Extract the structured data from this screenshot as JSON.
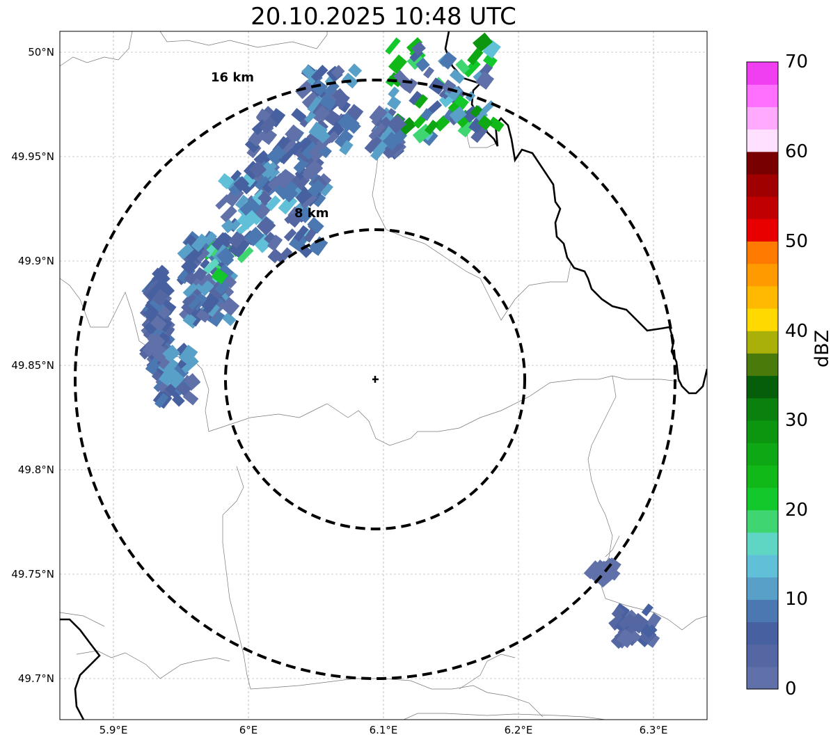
{
  "title": "20.10.2025 10:48 UTC",
  "map": {
    "lat_range": [
      49.68,
      50.01
    ],
    "lon_range": [
      5.86,
      6.34
    ],
    "lat_ticks": [
      {
        "value": 50.0,
        "label": "50°N"
      },
      {
        "value": 49.95,
        "label": "49.95°N"
      },
      {
        "value": 49.9,
        "label": "49.9°N"
      },
      {
        "value": 49.85,
        "label": "49.85°N"
      },
      {
        "value": 49.8,
        "label": "49.8°N"
      },
      {
        "value": 49.75,
        "label": "49.75°N"
      },
      {
        "value": 49.7,
        "label": "49.7°N"
      }
    ],
    "lon_ticks": [
      {
        "value": 5.9,
        "label": "5.9°E"
      },
      {
        "value": 6.0,
        "label": "6°E"
      },
      {
        "value": 6.1,
        "label": "6.1°E"
      },
      {
        "value": 6.2,
        "label": "6.2°E"
      },
      {
        "value": 6.3,
        "label": "6.3°E"
      }
    ],
    "radar_site": {
      "lat": 49.843,
      "lon": 6.095
    },
    "range_rings": [
      {
        "radius_km": 8,
        "label": "8 km"
      },
      {
        "radius_km": 16,
        "label": "16 km"
      }
    ]
  },
  "colorbar": {
    "label": "dBZ",
    "min": 0,
    "max": 70,
    "tick_labels": [
      "0",
      "10",
      "20",
      "30",
      "40",
      "50",
      "60",
      "70"
    ],
    "colors": [
      "#6070a8",
      "#5567a2",
      "#4760a0",
      "#4b78b0",
      "#58a0c8",
      "#60c0d8",
      "#5fd6c4",
      "#3fd672",
      "#12c82a",
      "#10b818",
      "#0ea814",
      "#0c9610",
      "#0a800e",
      "#065e0a",
      "#4a7a0a",
      "#aab00a",
      "#ffd900",
      "#ffb900",
      "#ff9a00",
      "#ff7a00",
      "#e80000",
      "#c00000",
      "#a00000",
      "#780000",
      "#ffe0ff",
      "#ffaaff",
      "#ff70ff",
      "#f03ff0"
    ]
  }
}
